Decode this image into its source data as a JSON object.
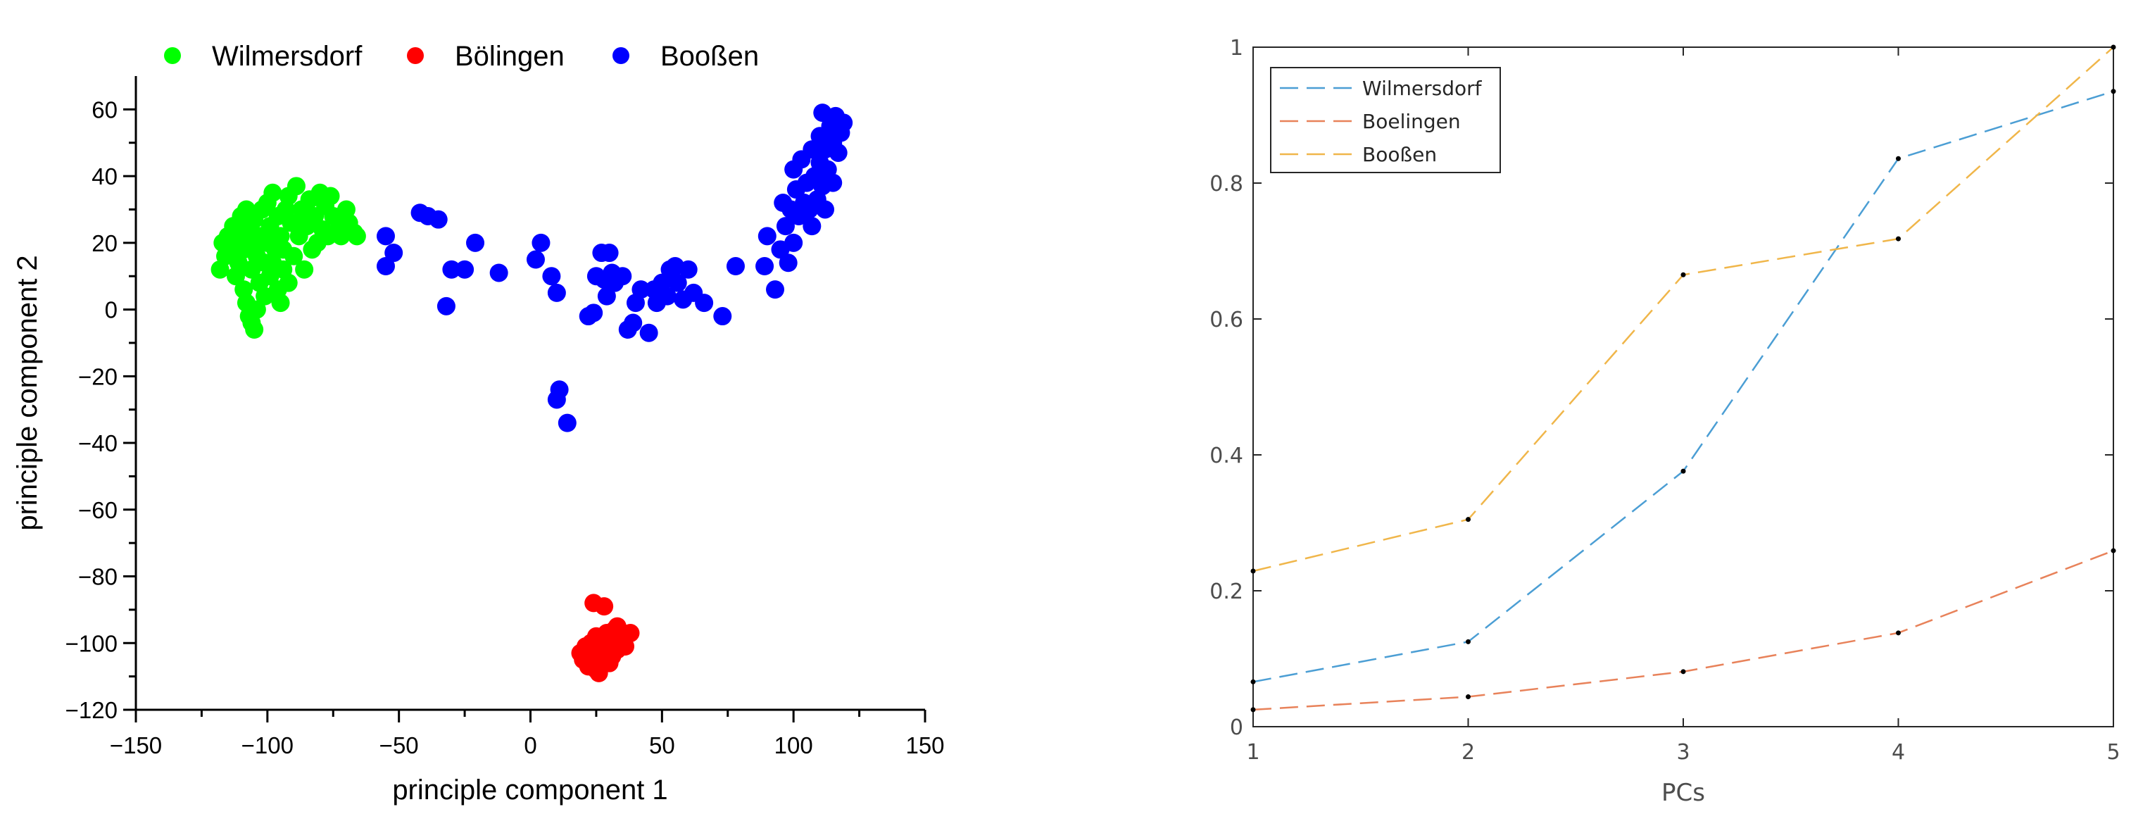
{
  "chart_data": [
    {
      "type": "scatter",
      "title": "",
      "xlabel": "principle component 1",
      "ylabel": "principle component 2",
      "xlim": [
        -150,
        150
      ],
      "ylim": [
        -120,
        70
      ],
      "xticks": [
        -150,
        -100,
        -50,
        0,
        50,
        100,
        150
      ],
      "yticks": [
        -120,
        -100,
        -80,
        -60,
        -40,
        -20,
        0,
        20,
        40,
        60
      ],
      "grid": false,
      "legend_position": "top",
      "series": [
        {
          "name": "Wilmersdorf",
          "color": "#00ff00",
          "points": [
            [
              -118,
              12
            ],
            [
              -116,
              16
            ],
            [
              -117,
              20
            ],
            [
              -115,
              22
            ],
            [
              -114,
              18
            ],
            [
              -113,
              25
            ],
            [
              -112,
              10
            ],
            [
              -111,
              14
            ],
            [
              -110,
              28
            ],
            [
              -110,
              20
            ],
            [
              -109,
              6
            ],
            [
              -109,
              18
            ],
            [
              -108,
              30
            ],
            [
              -108,
              2
            ],
            [
              -107,
              24
            ],
            [
              -107,
              -2
            ],
            [
              -106,
              12
            ],
            [
              -106,
              -4
            ],
            [
              -105,
              27
            ],
            [
              -105,
              -6
            ],
            [
              -104,
              16
            ],
            [
              -104,
              0
            ],
            [
              -103,
              8
            ],
            [
              -103,
              22
            ],
            [
              -102,
              30
            ],
            [
              -101,
              4
            ],
            [
              -101,
              14
            ],
            [
              -100,
              20
            ],
            [
              -99,
              25
            ],
            [
              -99,
              10
            ],
            [
              -98,
              35
            ],
            [
              -97,
              18
            ],
            [
              -96,
              28
            ],
            [
              -96,
              6
            ],
            [
              -95,
              22
            ],
            [
              -94,
              12
            ],
            [
              -93,
              30
            ],
            [
              -92,
              34
            ],
            [
              -92,
              8
            ],
            [
              -91,
              26
            ],
            [
              -90,
              16
            ],
            [
              -89,
              37
            ],
            [
              -88,
              22
            ],
            [
              -87,
              30
            ],
            [
              -86,
              12
            ],
            [
              -85,
              25
            ],
            [
              -84,
              33
            ],
            [
              -83,
              18
            ],
            [
              -82,
              28
            ],
            [
              -81,
              20
            ],
            [
              -80,
              35
            ],
            [
              -79,
              24
            ],
            [
              -78,
              31
            ],
            [
              -77,
              22
            ],
            [
              -76,
              34
            ],
            [
              -75,
              28
            ],
            [
              -73,
              24
            ],
            [
              -72,
              22
            ],
            [
              -70,
              30
            ],
            [
              -69,
              26
            ],
            [
              -67,
              23
            ],
            [
              -66,
              22
            ],
            [
              -104,
              20
            ],
            [
              -98,
              14
            ],
            [
              -112,
              24
            ],
            [
              -95,
              2
            ],
            [
              -100,
              32
            ],
            [
              -88,
              26
            ],
            [
              -94,
              18
            ]
          ]
        },
        {
          "name": "Bölingen",
          "color": "#ff0000",
          "points": [
            [
              24,
              -88
            ],
            [
              28,
              -89
            ],
            [
              19,
              -103
            ],
            [
              20,
              -105
            ],
            [
              21,
              -101
            ],
            [
              22,
              -107
            ],
            [
              22,
              -104
            ],
            [
              23,
              -100
            ],
            [
              24,
              -106
            ],
            [
              24,
              -102
            ],
            [
              25,
              -108
            ],
            [
              25,
              -98
            ],
            [
              26,
              -104
            ],
            [
              27,
              -100
            ],
            [
              27,
              -106
            ],
            [
              28,
              -102
            ],
            [
              29,
              -97
            ],
            [
              29,
              -105
            ],
            [
              30,
              -101
            ],
            [
              31,
              -99
            ],
            [
              31,
              -104
            ],
            [
              32,
              -96
            ],
            [
              33,
              -102
            ],
            [
              34,
              -99
            ],
            [
              35,
              -97
            ],
            [
              36,
              -101
            ],
            [
              38,
              -97
            ],
            [
              21,
              -103
            ],
            [
              26,
              -109
            ],
            [
              30,
              -106
            ],
            [
              33,
              -95
            ],
            [
              23,
              -104
            ]
          ]
        },
        {
          "name": "Booßen",
          "color": "#0000ff",
          "points": [
            [
              -55,
              22
            ],
            [
              -52,
              17
            ],
            [
              -55,
              13
            ],
            [
              -42,
              29
            ],
            [
              -39,
              28
            ],
            [
              -35,
              27
            ],
            [
              -32,
              1
            ],
            [
              -30,
              12
            ],
            [
              -25,
              12
            ],
            [
              -21,
              20
            ],
            [
              -12,
              11
            ],
            [
              2,
              15
            ],
            [
              4,
              20
            ],
            [
              8,
              10
            ],
            [
              10,
              5
            ],
            [
              10,
              -27
            ],
            [
              11,
              -24
            ],
            [
              14,
              -34
            ],
            [
              22,
              -2
            ],
            [
              24,
              -1
            ],
            [
              25,
              10
            ],
            [
              27,
              17
            ],
            [
              28,
              9
            ],
            [
              29,
              4
            ],
            [
              30,
              17
            ],
            [
              31,
              11
            ],
            [
              32,
              8
            ],
            [
              35,
              10
            ],
            [
              37,
              -6
            ],
            [
              39,
              -4
            ],
            [
              40,
              2
            ],
            [
              42,
              6
            ],
            [
              45,
              -7
            ],
            [
              47,
              6
            ],
            [
              48,
              2
            ],
            [
              50,
              8
            ],
            [
              52,
              4
            ],
            [
              53,
              12
            ],
            [
              55,
              13
            ],
            [
              56,
              8
            ],
            [
              58,
              3
            ],
            [
              60,
              12
            ],
            [
              62,
              5
            ],
            [
              66,
              2
            ],
            [
              73,
              -2
            ],
            [
              78,
              13
            ],
            [
              89,
              13
            ],
            [
              90,
              22
            ],
            [
              93,
              6
            ],
            [
              95,
              18
            ],
            [
              96,
              32
            ],
            [
              97,
              25
            ],
            [
              98,
              14
            ],
            [
              99,
              30
            ],
            [
              100,
              42
            ],
            [
              100,
              20
            ],
            [
              101,
              36
            ],
            [
              102,
              28
            ],
            [
              103,
              45
            ],
            [
              104,
              32
            ],
            [
              105,
              38
            ],
            [
              106,
              30
            ],
            [
              107,
              48
            ],
            [
              107,
              25
            ],
            [
              108,
              40
            ],
            [
              109,
              33
            ],
            [
              110,
              52
            ],
            [
              110,
              44
            ],
            [
              111,
              37
            ],
            [
              111,
              59
            ],
            [
              112,
              48
            ],
            [
              113,
              42
            ],
            [
              114,
              55
            ],
            [
              115,
              50
            ],
            [
              115,
              38
            ],
            [
              116,
              58
            ],
            [
              117,
              47
            ],
            [
              118,
              53
            ],
            [
              119,
              56
            ],
            [
              112,
              30
            ]
          ]
        }
      ]
    },
    {
      "type": "line",
      "title": "",
      "xlabel": "PCs",
      "ylabel": "",
      "xlim": [
        1,
        5
      ],
      "ylim": [
        0,
        1
      ],
      "xticks": [
        1,
        2,
        3,
        4,
        5
      ],
      "yticks": [
        0,
        0.2,
        0.4,
        0.6,
        0.8,
        1
      ],
      "ytick_labels": [
        "0",
        "0.2",
        "0.4",
        "0.6",
        "0.8",
        "1"
      ],
      "grid": false,
      "legend_position": "top-left",
      "x": [
        1,
        2,
        3,
        4,
        5
      ],
      "series": [
        {
          "name": "Wilmersdorf",
          "color": "#4b9ed4",
          "values": [
            0.066,
            0.125,
            0.376,
            0.836,
            0.935
          ]
        },
        {
          "name": "Boelingen",
          "color": "#e8825a",
          "values": [
            0.025,
            0.044,
            0.081,
            0.138,
            0.259
          ]
        },
        {
          "name": "Booßen",
          "color": "#f0b64a",
          "values": [
            0.229,
            0.305,
            0.665,
            0.718,
            1.0
          ]
        }
      ]
    }
  ]
}
